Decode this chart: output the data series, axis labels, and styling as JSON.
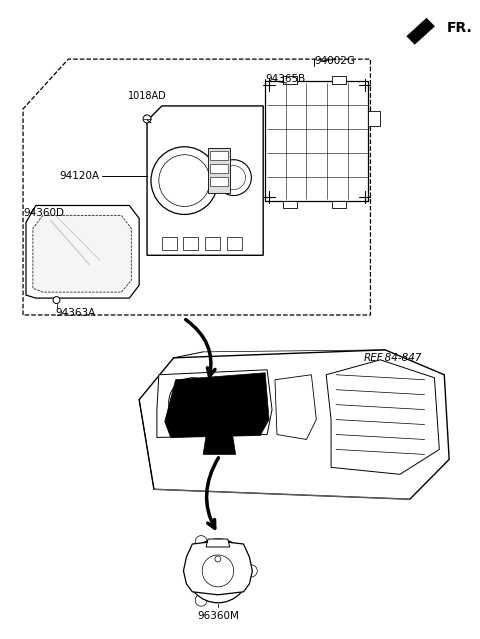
{
  "bg_color": "#ffffff",
  "labels": {
    "FR": "FR.",
    "part1": "94002G",
    "part2": "94365B",
    "part3": "1018AD",
    "part4": "94120A",
    "part5": "94360D",
    "part6": "94363A",
    "part7": "REF.84-847",
    "part8": "96360M"
  },
  "figsize": [
    4.8,
    6.39
  ],
  "dpi": 100
}
